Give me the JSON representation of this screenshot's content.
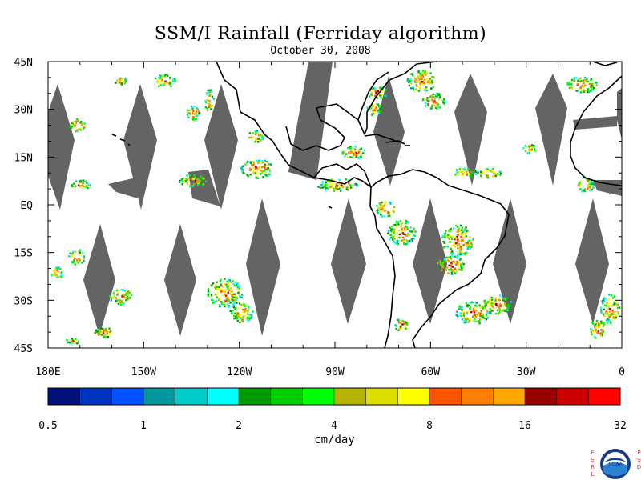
{
  "title": "SSM/I Rainfall (Ferriday algorithm)",
  "subtitle": "October 30, 2008",
  "map": {
    "lon_range": [
      -180,
      0
    ],
    "lat_range": [
      -45,
      45
    ],
    "lat_labels": [
      "45N",
      "30N",
      "15N",
      "EQ",
      "15S",
      "30S",
      "45S"
    ],
    "lat_values": [
      45,
      30,
      15,
      0,
      -15,
      -30,
      -45
    ],
    "lon_labels": [
      "180E",
      "150W",
      "120W",
      "90W",
      "60W",
      "30W",
      "0"
    ],
    "lon_values": [
      -180,
      -150,
      -120,
      -90,
      -60,
      -30,
      0
    ],
    "no_data_color": "#646464",
    "coastline_color": "#000000"
  },
  "colorbar": {
    "units": "cm/day",
    "tick_labels": [
      "0.5",
      "1",
      "2",
      "4",
      "8",
      "16",
      "32"
    ],
    "colors": [
      "#001077",
      "#0033bb",
      "#0050ff",
      "#00969a",
      "#00cccc",
      "#00ffff",
      "#009900",
      "#00cc00",
      "#00ff00",
      "#b4b400",
      "#dddd00",
      "#ffff00",
      "#ff5500",
      "#ff8000",
      "#ffa600",
      "#990000",
      "#cc0000",
      "#ff0000"
    ]
  },
  "logo": {
    "name": "NOAA",
    "left_letters": [
      "E",
      "S",
      "R",
      "L"
    ],
    "right_letters": [
      "P",
      "S",
      "D"
    ]
  }
}
